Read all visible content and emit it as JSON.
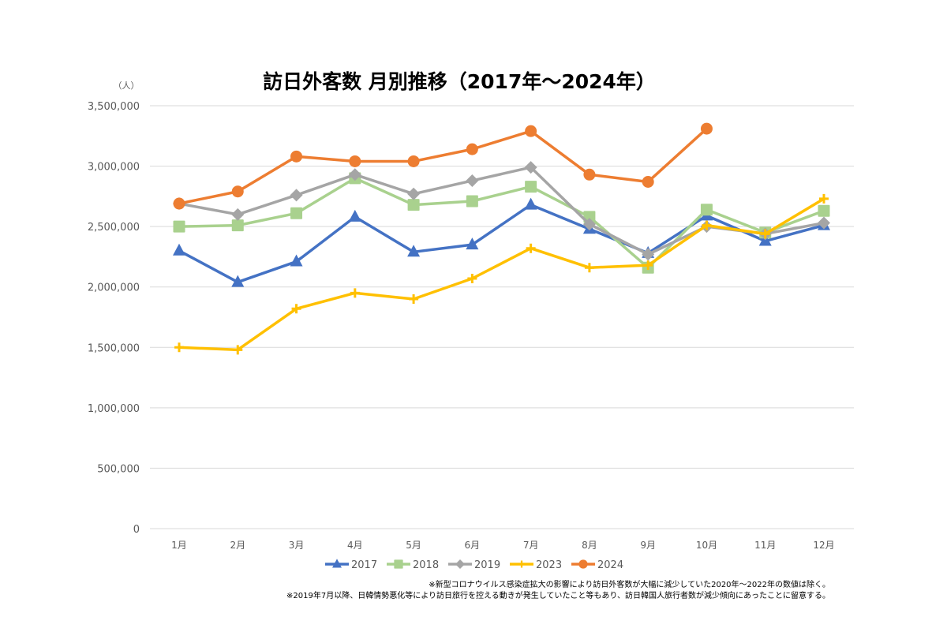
{
  "chart_data": {
    "type": "line",
    "title": "訪日外客数 月別推移（2017年～2024年）",
    "ylabel": "（人）",
    "xlabel": "",
    "ylim": [
      0,
      3500000
    ],
    "yticks": [
      0,
      500000,
      1000000,
      1500000,
      2000000,
      2500000,
      3000000,
      3500000
    ],
    "ytick_labels": [
      "0",
      "500,000",
      "1,000,000",
      "1,500,000",
      "2,000,000",
      "2,500,000",
      "3,000,000",
      "3,500,000"
    ],
    "grid": true,
    "legend_position": "bottom",
    "categories": [
      "1月",
      "2月",
      "3月",
      "4月",
      "5月",
      "6月",
      "7月",
      "8月",
      "9月",
      "10月",
      "11月",
      "12月"
    ],
    "series": [
      {
        "name": "2017",
        "color": "#4472C4",
        "marker": "triangle",
        "values": [
          2300000,
          2040000,
          2210000,
          2580000,
          2290000,
          2350000,
          2680000,
          2480000,
          2280000,
          2590000,
          2380000,
          2510000
        ]
      },
      {
        "name": "2018",
        "color": "#A9D18E",
        "marker": "square",
        "values": [
          2500000,
          2510000,
          2610000,
          2900000,
          2680000,
          2710000,
          2830000,
          2580000,
          2160000,
          2640000,
          2450000,
          2630000
        ]
      },
      {
        "name": "2019",
        "color": "#A5A5A5",
        "marker": "diamond",
        "values": [
          2690000,
          2600000,
          2760000,
          2930000,
          2770000,
          2880000,
          2990000,
          2520000,
          2270000,
          2500000,
          2440000,
          2530000
        ]
      },
      {
        "name": "2023",
        "color": "#FFC000",
        "marker": "plus",
        "values": [
          1500000,
          1480000,
          1820000,
          1950000,
          1900000,
          2070000,
          2320000,
          2160000,
          2180000,
          2510000,
          2440000,
          2730000
        ]
      },
      {
        "name": "2024",
        "color": "#ED7D31",
        "marker": "circle",
        "values": [
          2690000,
          2790000,
          3080000,
          3040000,
          3040000,
          3140000,
          3290000,
          2930000,
          2870000,
          3310000,
          null,
          null
        ]
      }
    ],
    "notes": [
      "※新型コロナウイルス感染症拡大の影響により訪日外客数が大幅に減少していた2020年～2022年の数値は除く。",
      "※2019年7月以降、日韓情勢悪化等により訪日旅行を控える動きが発生していたこと等もあり、訪日韓国人旅行者数が減少傾向にあったことに留意する。"
    ]
  }
}
